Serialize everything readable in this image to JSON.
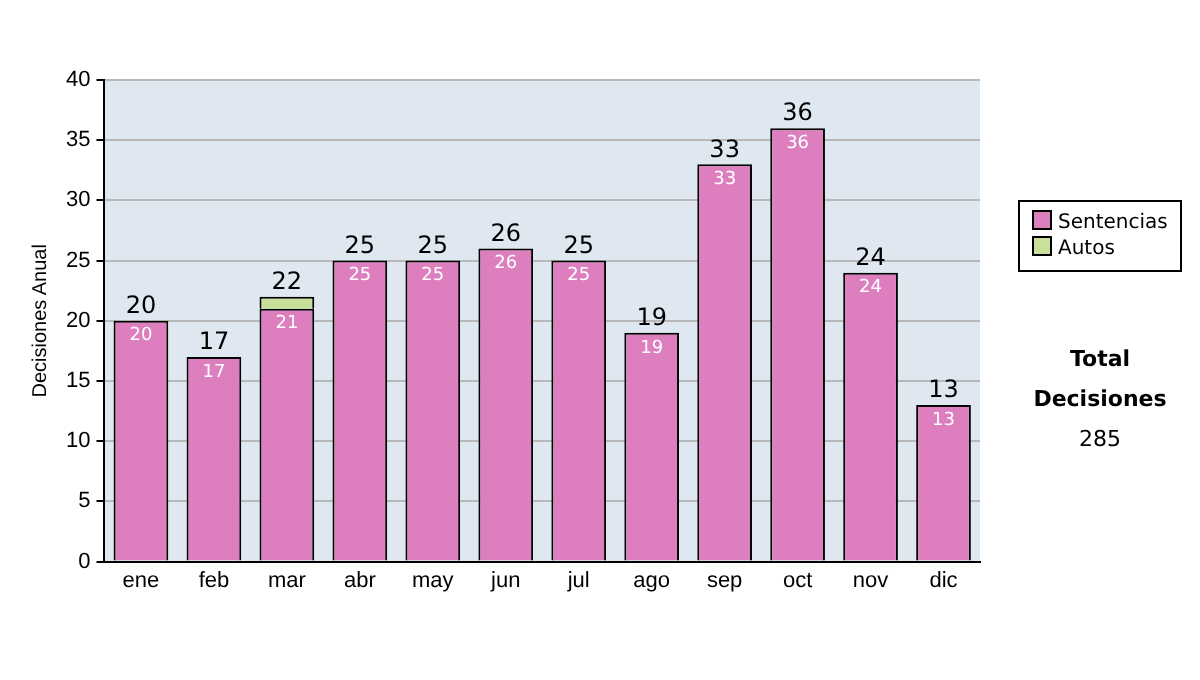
{
  "chart_data": {
    "type": "bar",
    "stacked": true,
    "ylabel": "Decisiones Anual",
    "categories": [
      "ene",
      "feb",
      "mar",
      "abr",
      "may",
      "jun",
      "jul",
      "ago",
      "sep",
      "oct",
      "nov",
      "dic"
    ],
    "series": [
      {
        "name": "Sentencias",
        "color": "#dd7fbf",
        "values": [
          20,
          17,
          21,
          25,
          25,
          26,
          25,
          19,
          33,
          36,
          24,
          13
        ],
        "value_labels": [
          "20",
          "17",
          "21",
          "25",
          "25",
          "26",
          "25",
          "19",
          "33",
          "36",
          "24",
          "13"
        ]
      },
      {
        "name": "Autos",
        "color": "#c8e09a",
        "values": [
          null,
          null,
          1,
          null,
          null,
          null,
          null,
          null,
          null,
          null,
          null,
          null
        ]
      }
    ],
    "totals": [
      "20",
      "17",
      "22",
      "25",
      "25",
      "26",
      "25",
      "19",
      "33",
      "36",
      "24",
      "13"
    ],
    "ylim": [
      0,
      40
    ],
    "yticks": [
      0,
      5,
      10,
      15,
      20,
      25,
      30,
      35,
      40
    ],
    "grid": "y",
    "legend": "right",
    "annotations": [
      "Total Decisiones",
      "285"
    ]
  }
}
